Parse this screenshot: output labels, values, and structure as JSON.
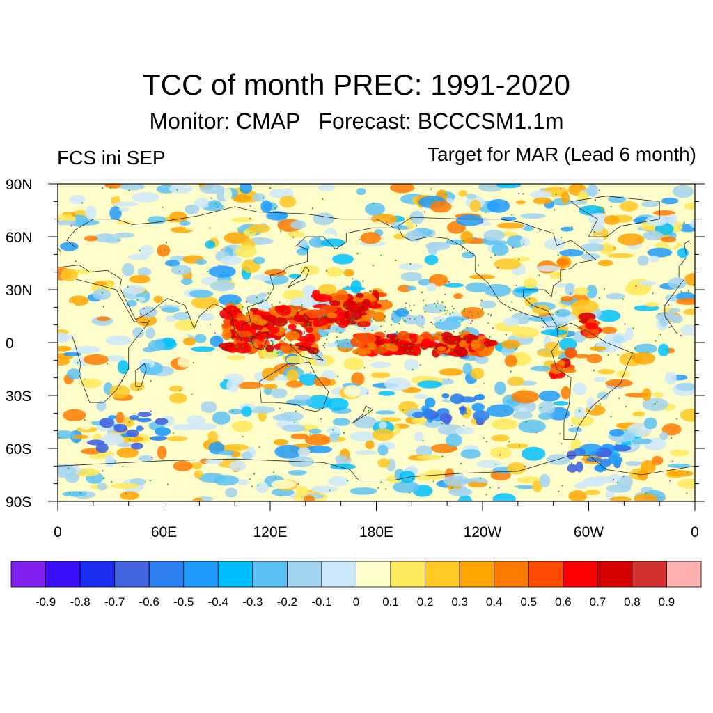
{
  "title": "TCC of month PREC: 1991-2020",
  "subtitle": "Monitor: CMAP   Forecast: BCCCSM1.1m",
  "left_label": "FCS ini SEP",
  "right_label": "Target for MAR (Lead 6 month)",
  "lat_labels": [
    "90N",
    "60N",
    "30N",
    "0",
    "30S",
    "60S",
    "90S"
  ],
  "lon_labels": [
    "0",
    "60E",
    "120E",
    "180E",
    "120W",
    "60W",
    "0"
  ],
  "colorbar": {
    "colors": [
      "#8221ef",
      "#3b0ff9",
      "#1a2ef2",
      "#4264e0",
      "#2b7ff0",
      "#1f9bff",
      "#00bfff",
      "#5cc2f5",
      "#a2d4f2",
      "#cde8fa",
      "#fffdc9",
      "#ffe95c",
      "#ffc823",
      "#ffa502",
      "#ff7a00",
      "#ff4a00",
      "#ff0000",
      "#d60000",
      "#d43232",
      "#ffb0b0"
    ],
    "labels": [
      "-0.9",
      "-0.8",
      "-0.7",
      "-0.6",
      "-0.5",
      "-0.4",
      "-0.3",
      "-0.2",
      "-0.1",
      "0",
      "0.1",
      "0.2",
      "0.3",
      "0.4",
      "0.5",
      "0.6",
      "0.7",
      "0.8",
      "0.9"
    ]
  }
}
